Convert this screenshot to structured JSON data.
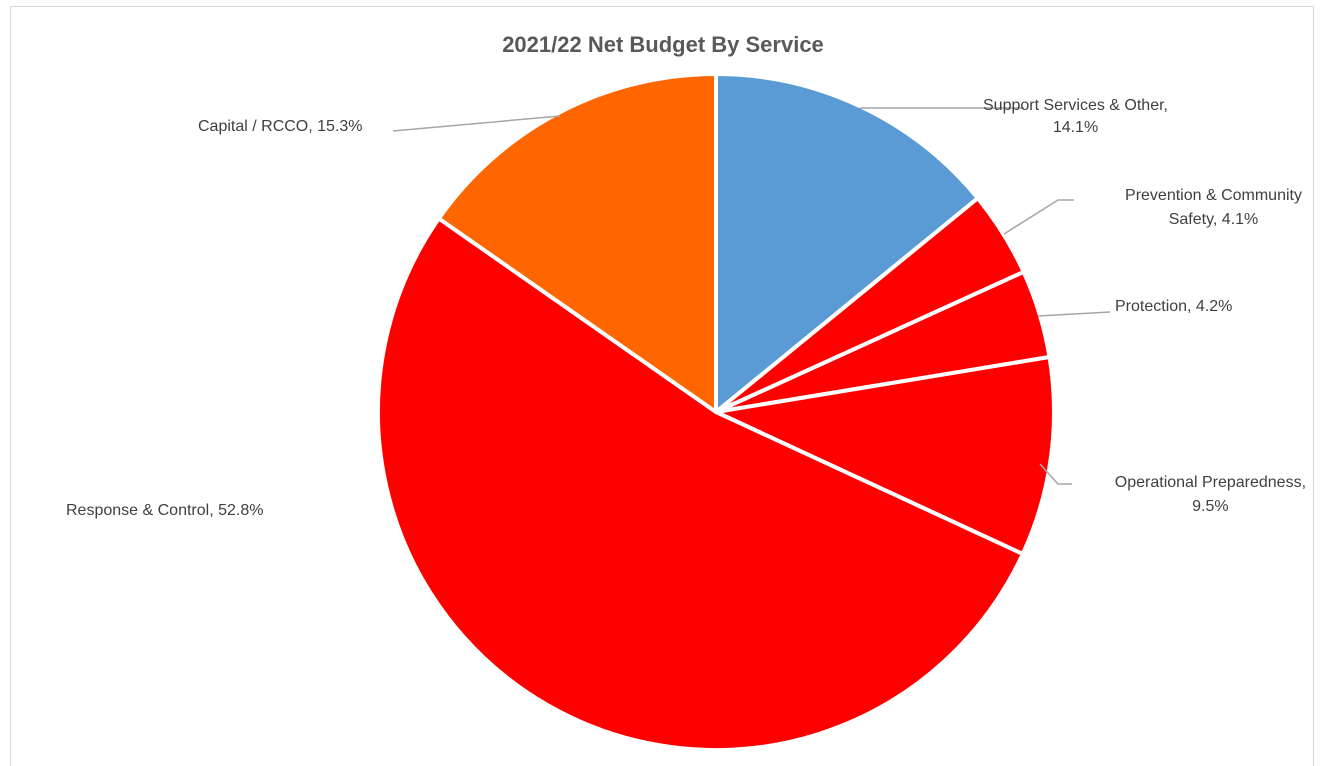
{
  "chart_data": {
    "type": "pie",
    "title": "2021/22 Net Budget By Service",
    "slices": [
      {
        "name": "Support Services & Other",
        "value": 14.1,
        "color": "#5b9bd5",
        "label_lines": [
          "Support Services & Other,",
          "14.1%"
        ]
      },
      {
        "name": "Prevention & Community Safety",
        "value": 4.1,
        "color": "#ff0000",
        "label_lines": [
          "Prevention & Community",
          "Safety, 4.1%"
        ]
      },
      {
        "name": "Protection",
        "value": 4.2,
        "color": "#ff0000",
        "label_lines": [
          "Protection, 4.2%"
        ]
      },
      {
        "name": "Operational Preparedness",
        "value": 9.5,
        "color": "#ff0000",
        "label_lines": [
          "Operational Preparedness,",
          "9.5%"
        ]
      },
      {
        "name": "Response & Control",
        "value": 52.8,
        "color": "#ff0000",
        "label_lines": [
          "Response & Control, 52.8%"
        ]
      },
      {
        "name": "Capital / RCCO",
        "value": 15.3,
        "color": "#ff6600",
        "label_lines": [
          "Capital / RCCO, 15.3%"
        ]
      }
    ],
    "start_angle_deg": 0,
    "direction": "clockwise",
    "legend": "none"
  }
}
